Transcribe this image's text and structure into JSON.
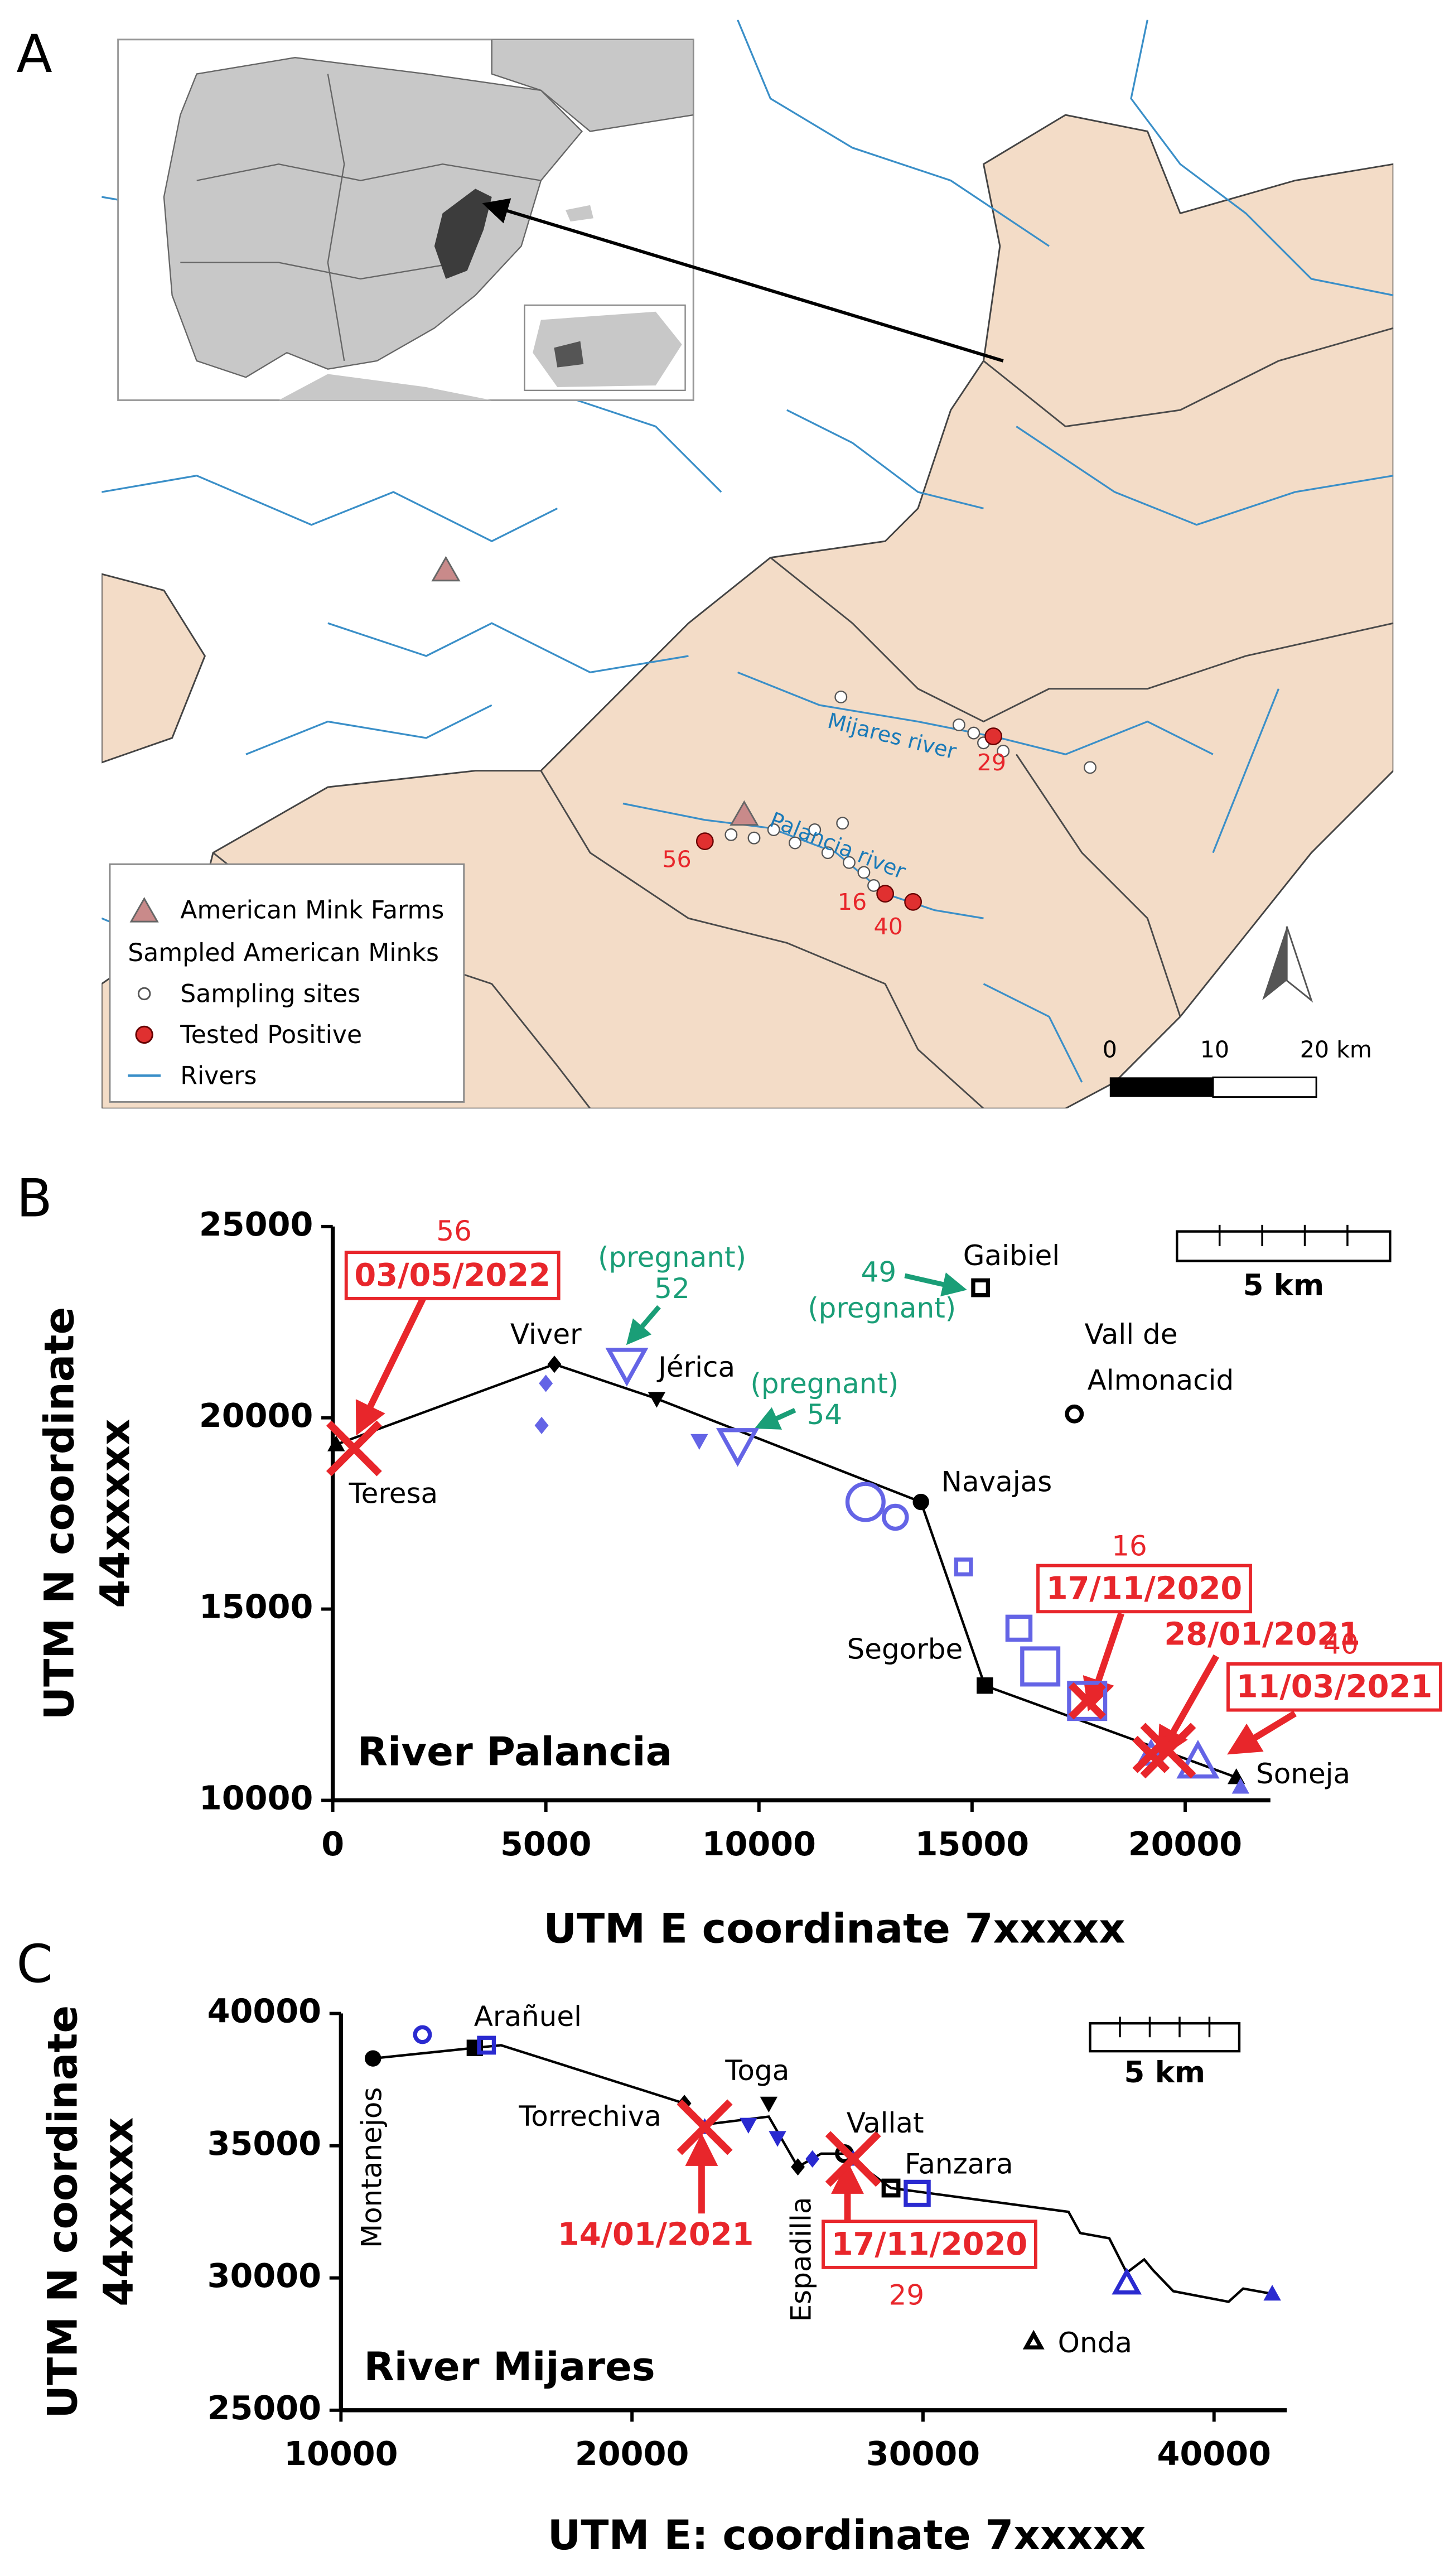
{
  "map": {
    "panel": "A",
    "legend": [
      "American Mink Farms",
      "Sampled American Minks",
      "Sampling sites",
      "Tested Positive",
      "Rivers"
    ],
    "river_labels": [
      "Mijares river",
      "Palancia river"
    ],
    "case_labels": [
      "29",
      "56",
      "16",
      "40"
    ],
    "scale_labels": [
      "0",
      "10",
      "20 km"
    ]
  },
  "chart_data": [
    {
      "type": "scatter",
      "panel": "B",
      "title": "River Palancia",
      "x_label": "UTM E coordinate 7xxxxx",
      "y_label": [
        "UTM N coordinate",
        "44xxxxx"
      ],
      "xlim": [
        0,
        22000
      ],
      "ylim": [
        10000,
        25000
      ],
      "xticks": [
        0,
        5000,
        10000,
        15000,
        20000
      ],
      "yticks": [
        10000,
        15000,
        20000,
        25000
      ],
      "scale_label": "5 km",
      "line": {
        "color": "#000000",
        "x": [
          80,
          5200,
          7600,
          13800,
          15300,
          19000,
          21200
        ],
        "y": [
          19300,
          21400,
          20500,
          17800,
          13000,
          11500,
          10600
        ]
      },
      "series": [
        {
          "color": "#000000",
          "x": [
            80,
            5200,
            7600,
            13800,
            15300,
            21200,
            15200,
            17400
          ],
          "y": [
            19300,
            21400,
            20500,
            17800,
            13000,
            10600,
            23400,
            20100
          ],
          "markers": [
            "triangle filled s",
            "diamond filled s",
            "tridown filled s",
            "circle filled s",
            "square filled s",
            "triangle filled s",
            "square open s",
            "circle open s"
          ]
        },
        {
          "color": "#6464e6",
          "x": [
            5000,
            4900,
            6900,
            8600,
            9500,
            12500,
            13200,
            14800,
            16100,
            16600,
            17700,
            19200,
            20300,
            21300
          ],
          "y": [
            20900,
            19800,
            21400,
            19400,
            19300,
            17800,
            17400,
            16100,
            14500,
            13500,
            12600,
            11200,
            11000,
            10350
          ],
          "markers": [
            "diamond filled s",
            "diamond filled s",
            "tridown open l",
            "tridown filled s",
            "tridown open l",
            "circle open l",
            "circle open m",
            "square open s",
            "square open m",
            "square open l",
            "square open l",
            "triangle open m",
            "triangle open l",
            "triangle filled s"
          ]
        },
        {
          "color": "#e8262b",
          "x": [
            500,
            17700,
            19200,
            19600
          ],
          "y": [
            19200,
            12600,
            11200,
            11300
          ],
          "markers": [
            "cross open l",
            "cross open m",
            "cross open m",
            "cross open l"
          ]
        }
      ],
      "annotations": [
        {
          "text": "56",
          "color": "#e8262b"
        },
        {
          "text": "03/05/2022",
          "color": "#e8262b",
          "bold": true,
          "boxed": true
        },
        {
          "text": "(pregnant)",
          "color": "#1a9e77"
        },
        {
          "text": "52",
          "color": "#1a9e77"
        },
        {
          "text": "49",
          "color": "#1a9e77"
        },
        {
          "text": "(pregnant)",
          "color": "#1a9e77"
        },
        {
          "text": "(pregnant)",
          "color": "#1a9e77"
        },
        {
          "text": "54",
          "color": "#1a9e77"
        },
        {
          "text": "Gaibiel",
          "color": "#000000"
        },
        {
          "text": "Vall de",
          "color": "#000000"
        },
        {
          "text": "Almonacid",
          "color": "#000000"
        },
        {
          "text": "Viver",
          "color": "#000000"
        },
        {
          "text": "Jérica",
          "color": "#000000"
        },
        {
          "text": "Teresa",
          "color": "#000000"
        },
        {
          "text": "Navajas",
          "color": "#000000"
        },
        {
          "text": "Segorbe",
          "color": "#000000"
        },
        {
          "text": "Soneja",
          "color": "#000000"
        },
        {
          "text": "16",
          "color": "#e8262b"
        },
        {
          "text": "17/11/2020",
          "color": "#e8262b",
          "bold": true,
          "boxed": true
        },
        {
          "text": "28/01/2021",
          "color": "#e8262b",
          "bold": true
        },
        {
          "text": "40",
          "color": "#e8262b"
        },
        {
          "text": "11/03/2021",
          "color": "#e8262b",
          "bold": true,
          "boxed": true
        }
      ]
    },
    {
      "type": "scatter",
      "panel": "C",
      "title": "River Mijares",
      "x_label": "UTM E: coordinate 7xxxxx",
      "y_label": [
        "UTM N coordinate",
        "44xxxxx"
      ],
      "xlim": [
        10000,
        42500
      ],
      "ylim": [
        25000,
        40000
      ],
      "xticks": [
        10000,
        20000,
        30000,
        40000
      ],
      "yticks": [
        25000,
        30000,
        35000,
        40000
      ],
      "scale_label": "5 km",
      "line": {
        "color": "#000000",
        "x": [
          11100,
          14600,
          15500,
          21800,
          22500,
          24700,
          25700,
          26500,
          27300,
          28900,
          35000,
          35400,
          36400,
          37000,
          37600,
          37900,
          38600,
          40500,
          41000,
          42000
        ],
        "y": [
          38300,
          38700,
          38800,
          36600,
          35800,
          36100,
          34200,
          34700,
          34700,
          33400,
          32500,
          31700,
          31500,
          30200,
          30700,
          30300,
          29500,
          29100,
          29600,
          29400
        ]
      },
      "series": [
        {
          "color": "#000000",
          "x": [
            11100,
            14600,
            21800,
            24700,
            25700,
            27300,
            28900,
            33800
          ],
          "y": [
            38300,
            38700,
            36600,
            36600,
            34200,
            34700,
            33400,
            27600
          ],
          "markers": [
            "circle filled s",
            "square filled s",
            "diamond filled s",
            "tridown filled s",
            "diamond filled s",
            "circle open s",
            "square open s",
            "triangle open s"
          ]
        },
        {
          "color": "#2a2ad0",
          "x": [
            12800,
            15000,
            22500,
            24000,
            25000,
            26200,
            27600,
            29800,
            37000,
            42000
          ],
          "y": [
            39200,
            38800,
            35700,
            35800,
            35300,
            34500,
            34500,
            33200,
            29800,
            29400
          ],
          "markers": [
            "circle open s",
            "square open s",
            "triangle filled s",
            "tridown filled s",
            "tridown filled s",
            "diamond filled s",
            "triangle filled s",
            "square open m",
            "triangle open m",
            "triangle filled s"
          ]
        },
        {
          "color": "#e8262b",
          "x": [
            22500,
            27600
          ],
          "y": [
            35700,
            34500
          ],
          "markers": [
            "cross open l",
            "cross open l"
          ]
        }
      ],
      "annotations": [
        {
          "text": "Arañuel",
          "color": "#000000"
        },
        {
          "text": "Montanejos",
          "color": "#000000",
          "vertical": true
        },
        {
          "text": "Torrechiva",
          "color": "#000000"
        },
        {
          "text": "Toga",
          "color": "#000000"
        },
        {
          "text": "Vallat",
          "color": "#000000"
        },
        {
          "text": "Fanzara",
          "color": "#000000"
        },
        {
          "text": "Espadilla",
          "color": "#000000",
          "vertical": true
        },
        {
          "text": "Onda",
          "color": "#000000"
        },
        {
          "text": "14/01/2021",
          "color": "#e8262b",
          "bold": true
        },
        {
          "text": "17/11/2020",
          "color": "#e8262b",
          "bold": true,
          "boxed": true
        },
        {
          "text": "29",
          "color": "#e8262b"
        }
      ]
    }
  ]
}
